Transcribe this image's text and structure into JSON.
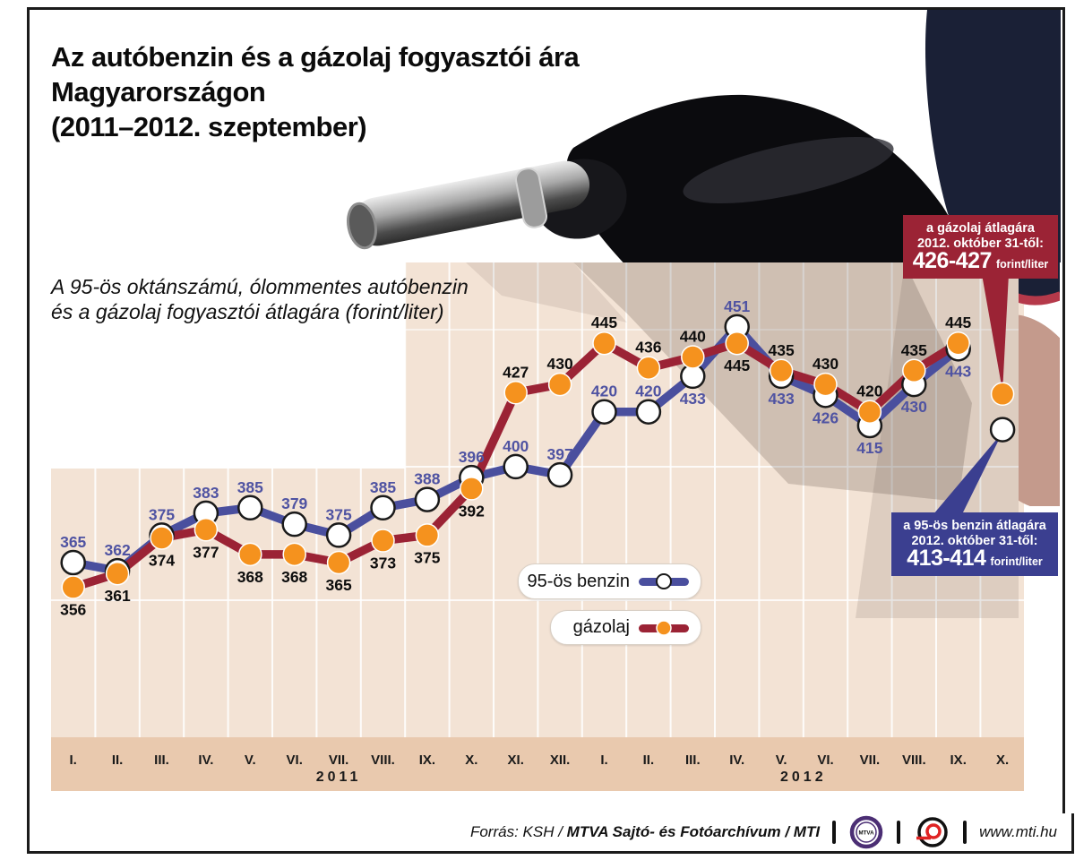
{
  "title": {
    "line1": "Az autóbenzin és a gázolaj fogyasztói ára",
    "line2": "Magyarországon",
    "line3": "(2011–2012. szeptember)"
  },
  "subtitle": {
    "line1": "A 95-ös oktánszámú, ólommentes autóbenzin",
    "line2": "és a gázolaj fogyasztói átlagára (forint/liter)"
  },
  "legend": {
    "items": [
      {
        "label": "95-ös benzin"
      },
      {
        "label": "gázolaj"
      }
    ]
  },
  "callouts": {
    "diesel": {
      "line1": "a gázolaj átlagára",
      "line2": "2012. október 31-től:",
      "value": "426-427",
      "unit": "forint/liter",
      "bg": "#9b2335"
    },
    "benzin": {
      "line1": "a 95-ös benzin átlagára",
      "line2": "2012. október 31-től:",
      "value": "413-414",
      "unit": "forint/liter",
      "bg": "#3b3f90"
    }
  },
  "colors": {
    "benzin_line": "#4a4f9e",
    "benzin_label": "#4f53a2",
    "gazolaj_line": "#9b2335",
    "gazolaj_label": "#0d0d0d",
    "marker_orange": "#f5921e",
    "plot_bg": "#f3e3d5",
    "axis_band": "#e9c9ae"
  },
  "chart_data": {
    "type": "line",
    "unit": "forint/liter",
    "ylim": [
      300,
      475
    ],
    "grid": true,
    "months": [
      "I.",
      "II.",
      "III.",
      "IV.",
      "V.",
      "VI.",
      "VII.",
      "VIII.",
      "IX.",
      "X.",
      "XI.",
      "XII.",
      "I.",
      "II.",
      "III.",
      "IV.",
      "V.",
      "VI.",
      "VII.",
      "VIII.",
      "IX.",
      "X."
    ],
    "years": [
      {
        "label": "2011",
        "center_index": 6
      },
      {
        "label": "2012",
        "center_index": 16.5
      }
    ],
    "series": [
      {
        "name": "95-ös benzin",
        "color": "#4a4f9e",
        "marker": "white-dot",
        "marker_fill": "#ffffff",
        "marker_stroke": "#1a1a1a",
        "label_color": "#4f53a2",
        "values": [
          365,
          362,
          375,
          383,
          385,
          379,
          375,
          385,
          388,
          396,
          400,
          397,
          420,
          420,
          433,
          451,
          433,
          426,
          415,
          430,
          443
        ],
        "label_pos": [
          "above",
          "above",
          "above",
          "above",
          "above",
          "above",
          "above",
          "above",
          "above",
          "above",
          "above",
          "above",
          "above",
          "above",
          "below",
          "above",
          "below",
          "below",
          "below",
          "below",
          "below"
        ],
        "final_point": {
          "month": "X. 2012",
          "callout_value": "413-414",
          "plot_value": 413.5
        }
      },
      {
        "name": "gázolaj",
        "color": "#9b2335",
        "marker": "orange-dot",
        "marker_fill": "#f5921e",
        "marker_stroke": "#ffffff",
        "label_color": "#0d0d0d",
        "values": [
          356,
          361,
          374,
          377,
          368,
          368,
          365,
          373,
          375,
          392,
          427,
          430,
          445,
          436,
          440,
          445,
          435,
          430,
          420,
          435,
          445
        ],
        "label_pos": [
          "below",
          "below",
          "below",
          "below",
          "below",
          "below",
          "below",
          "below",
          "below",
          "below",
          "above",
          "above",
          "above",
          "above",
          "above",
          "below",
          "above",
          "above",
          "above",
          "above",
          "above"
        ],
        "final_point": {
          "month": "X. 2012",
          "callout_value": "426-427",
          "plot_value": 426.5
        }
      }
    ]
  },
  "footer": {
    "source_prefix": "Forrás: KSH / ",
    "source_bold": "MTVA Sajtó- és Fotóarchívum / MTI",
    "mtva_logo_text": "MTVA",
    "site": "www.mti.hu"
  }
}
